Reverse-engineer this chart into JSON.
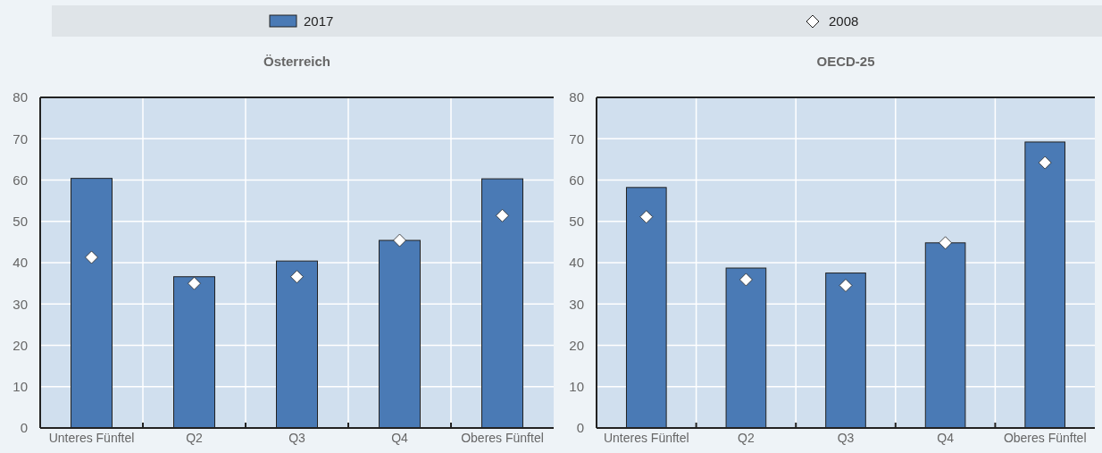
{
  "chart_data": [
    {
      "type": "bar",
      "title": "Österreich",
      "categories": [
        "Unteres Fünftel",
        "Q2",
        "Q3",
        "Q4",
        "Oberes Fünftel"
      ],
      "series": [
        {
          "name": "2017",
          "color": "#4a7ab5",
          "values": [
            60.4,
            36.6,
            40.4,
            45.4,
            60.3
          ]
        },
        {
          "name": "2008",
          "type": "scatter",
          "color": "#ffffff",
          "marker": "diamond",
          "x": [
            "Unteres Fünftel",
            "Q2",
            "Q3",
            "Q4",
            "Oberes Fünftel"
          ],
          "values": [
            41.3,
            35.0,
            36.6,
            45.4,
            51.4
          ]
        }
      ],
      "ylim": [
        0,
        80
      ],
      "yticks": [
        0,
        10,
        20,
        30,
        40,
        50,
        60,
        70,
        80
      ],
      "grid": true,
      "legend": "top"
    },
    {
      "type": "bar",
      "title": "OECD-25",
      "categories": [
        "Unteres Fünftel",
        "Q2",
        "Q3",
        "Q4",
        "Oberes Fünftel"
      ],
      "series": [
        {
          "name": "2017",
          "color": "#4a7ab5",
          "values": [
            58.2,
            38.7,
            37.5,
            44.8,
            69.2
          ]
        },
        {
          "name": "2008",
          "type": "scatter",
          "color": "#ffffff",
          "marker": "diamond",
          "x": [
            "Unteres Fünftel",
            "Q2",
            "Q3",
            "Q4",
            "Oberes Fünftel"
          ],
          "values": [
            51.1,
            35.9,
            34.5,
            44.8,
            64.2
          ]
        }
      ],
      "ylim": [
        0,
        80
      ],
      "yticks": [
        0,
        10,
        20,
        30,
        40,
        50,
        60,
        70,
        80
      ],
      "grid": true,
      "legend": "top"
    }
  ]
}
